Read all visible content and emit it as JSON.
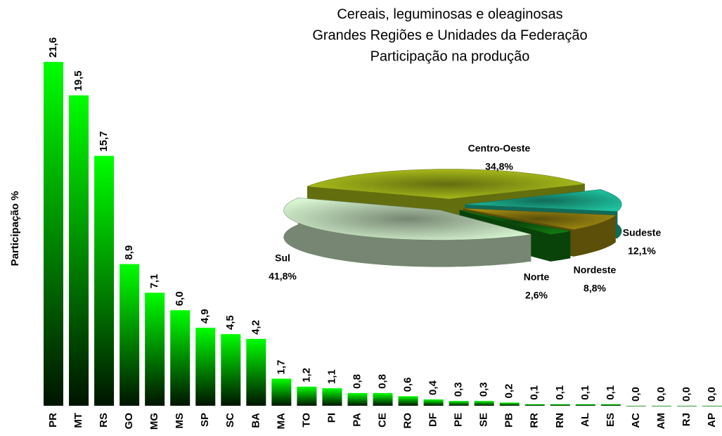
{
  "chart_data": [
    {
      "type": "bar",
      "title": [
        "Cereais, leguminosas e oleaginosas",
        "Grandes Regiões e Unidades da Federação",
        "Participação na produção"
      ],
      "y_label": "Participação %",
      "categories": [
        "PR",
        "MT",
        "RS",
        "GO",
        "MG",
        "MS",
        "SP",
        "SC",
        "BA",
        "MA",
        "TO",
        "PI",
        "PA",
        "CE",
        "RO",
        "DF",
        "PE",
        "SE",
        "PB",
        "RR",
        "RN",
        "AL",
        "ES",
        "AC",
        "AM",
        "RJ",
        "AP"
      ],
      "values": [
        21.6,
        19.5,
        15.7,
        8.9,
        7.1,
        6.0,
        4.9,
        4.5,
        4.2,
        1.7,
        1.2,
        1.1,
        0.8,
        0.8,
        0.6,
        0.4,
        0.3,
        0.3,
        0.2,
        0.1,
        0.1,
        0.1,
        0.1,
        0.0,
        0.0,
        0.0,
        0.0
      ],
      "value_labels": [
        "21,6",
        "19,5",
        "15,7",
        "8,9",
        "7,1",
        "6,0",
        "4,9",
        "4,5",
        "4,2",
        "1,7",
        "1,2",
        "1,1",
        "0,8",
        "0,8",
        "0,6",
        "0,4",
        "0,3",
        "0,3",
        "0,2",
        "0,1",
        "0,1",
        "0,1",
        "0,1",
        "0,0",
        "0,0",
        "0,0",
        "0,0"
      ],
      "color": "#00ff00",
      "ylim": [
        0,
        22
      ]
    },
    {
      "type": "pie",
      "categories": [
        "Sudeste",
        "Nordeste",
        "Norte",
        "Sul",
        "Centro-Oeste"
      ],
      "values": [
        12.1,
        8.8,
        2.6,
        41.8,
        34.8
      ],
      "value_labels": [
        "12,1%",
        "8,8%",
        "2,6%",
        "41,8%",
        "34,8%"
      ],
      "colors": [
        "#1fc3a0",
        "#a58f12",
        "#127a12",
        "#d6f4d0",
        "#b4c81c"
      ]
    }
  ]
}
